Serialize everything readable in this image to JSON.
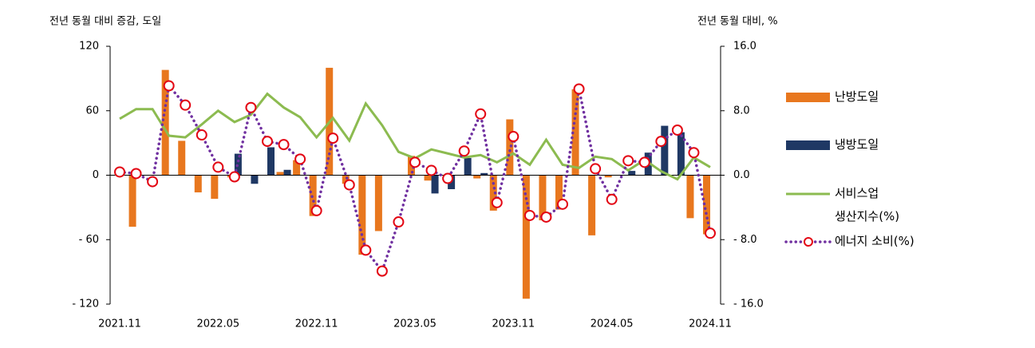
{
  "chart_data": {
    "type": "combo",
    "y_label": "전년 동월 대비 증감, 도일",
    "y2_label": "전년 동월 대비, %",
    "categories": [
      "2021.11",
      null,
      null,
      null,
      null,
      null,
      "2022.05",
      null,
      null,
      null,
      null,
      null,
      "2022.11",
      null,
      null,
      null,
      null,
      null,
      "2023.05",
      null,
      null,
      null,
      null,
      null,
      "2023.11",
      null,
      null,
      null,
      null,
      null,
      "2024.05",
      null,
      null,
      null,
      null,
      null,
      "2024.11"
    ],
    "ylim": [
      -120,
      120
    ],
    "yticks": [
      {
        "value": -120,
        "label": "- 120"
      },
      {
        "value": -60,
        "label": "- 60"
      },
      0,
      60,
      120
    ],
    "y2lim": [
      -16,
      16
    ],
    "y2ticks": [
      {
        "value": -16,
        "label": "- 16.0"
      },
      {
        "value": -8,
        "label": "- 8.0"
      },
      {
        "value": 0,
        "label": "0.0"
      },
      {
        "value": 8,
        "label": "8.0"
      },
      {
        "value": 16,
        "label": "16.0"
      }
    ],
    "series": [
      {
        "name": "난방도일",
        "type": "bar",
        "color": "#e8771e",
        "values": [
          0,
          -48,
          0,
          98,
          32,
          -16,
          -22,
          -2,
          0,
          0,
          3,
          14,
          -38,
          100,
          -8,
          -74,
          -52,
          0,
          18,
          -5,
          0,
          0,
          -3,
          -33,
          52,
          -115,
          -42,
          -32,
          80,
          -56,
          -2,
          0,
          0,
          0,
          0,
          -40,
          -55
        ]
      },
      {
        "name": "냉방도일",
        "type": "bar",
        "color": "#1f3864",
        "values": [
          0,
          0,
          0,
          0,
          0,
          0,
          0,
          20,
          -8,
          26,
          5,
          0,
          0,
          0,
          0,
          0,
          0,
          0,
          0,
          -17,
          -13,
          16,
          2,
          0,
          0,
          0,
          0,
          0,
          0,
          0,
          0,
          4,
          21,
          46,
          40,
          0,
          0
        ]
      },
      {
        "name": "서비스업\n생산지수(%)",
        "type": "line",
        "axis": "y2",
        "color": "#8cbb50",
        "values": [
          7.0,
          8.2,
          8.2,
          4.9,
          4.7,
          6.3,
          8.0,
          6.6,
          7.5,
          10.1,
          8.4,
          7.2,
          4.7,
          7.1,
          4.3,
          8.9,
          6.2,
          2.9,
          2.1,
          3.2,
          2.7,
          2.2,
          2.5,
          1.6,
          2.7,
          1.3,
          4.4,
          1.3,
          0.9,
          2.3,
          2.0,
          0.6,
          1.9,
          0.5,
          -0.5,
          2.2,
          1.0
        ]
      },
      {
        "name": "에너지 소비(%)",
        "type": "line",
        "axis": "y2",
        "color": "#7030a0",
        "dotted": true,
        "marker_color": "#e30613",
        "values": [
          0.4,
          0.2,
          -0.8,
          11.1,
          8.7,
          5.0,
          1.0,
          -0.2,
          8.4,
          4.2,
          3.8,
          2.0,
          -4.4,
          4.6,
          -1.2,
          -9.3,
          -11.9,
          -5.8,
          1.6,
          0.6,
          -0.4,
          3.0,
          7.6,
          -3.4,
          4.8,
          -5.0,
          -5.2,
          -3.6,
          10.7,
          0.8,
          -3.0,
          1.8,
          1.6,
          4.2,
          5.6,
          2.8,
          -7.2
        ]
      }
    ]
  }
}
